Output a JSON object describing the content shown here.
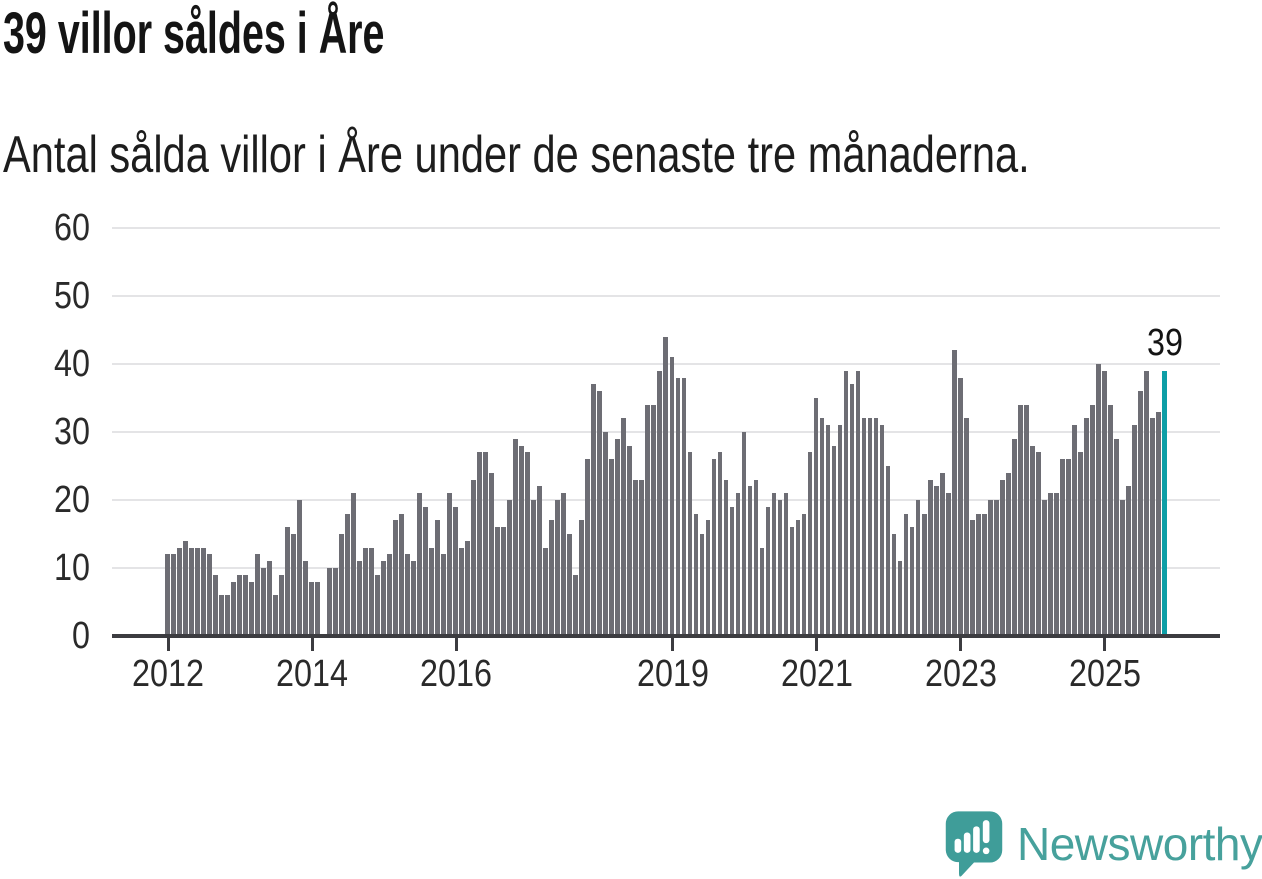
{
  "header": {
    "title": "39 villor såldes i Åre",
    "subtitle": "Antal sålda villor i Åre under de senaste tre månaderna."
  },
  "annotation": {
    "last_value_label": "39"
  },
  "footer": {
    "brand": "Newsworthy"
  },
  "colors": {
    "bar": "#6d6d74",
    "highlight": "#0d9ea6",
    "grid": "#e4e4e6",
    "axis": "#3c3c40",
    "text": "#2a2a2a",
    "title_text": "#141414",
    "brand_teal": "#47a19c",
    "logo_bubble": "#3f9d99"
  },
  "chart_data": {
    "type": "bar",
    "title": "39 villor såldes i Åre",
    "subtitle": "Antal sålda villor i Åre under de senaste tre månaderna.",
    "description": "Monthly rolling three-month count of villa sales in Åre, first bar Jan 2012, last (highlighted) bar value 39",
    "y_ticks": [
      0,
      10,
      20,
      30,
      40,
      50,
      60
    ],
    "ylim": [
      0,
      60
    ],
    "grid": "horizontal",
    "x_tick_labels": [
      "2012",
      "2014",
      "2016",
      "2019",
      "2021",
      "2023",
      "2025"
    ],
    "x_tick_indices": [
      0,
      24,
      48,
      84,
      108,
      132,
      156
    ],
    "values": [
      12,
      12,
      13,
      14,
      13,
      13,
      13,
      12,
      9,
      6,
      6,
      8,
      9,
      9,
      8,
      12,
      10,
      11,
      6,
      9,
      16,
      15,
      20,
      11,
      8,
      8,
      0,
      10,
      10,
      15,
      18,
      21,
      11,
      13,
      13,
      9,
      11,
      12,
      17,
      18,
      12,
      11,
      21,
      19,
      13,
      17,
      12,
      21,
      19,
      13,
      14,
      23,
      27,
      27,
      24,
      16,
      16,
      20,
      29,
      28,
      27,
      20,
      22,
      13,
      17,
      20,
      21,
      15,
      9,
      17,
      26,
      37,
      36,
      30,
      26,
      29,
      32,
      28,
      23,
      23,
      34,
      34,
      39,
      44,
      41,
      38,
      38,
      27,
      18,
      15,
      17,
      26,
      27,
      23,
      19,
      21,
      30,
      22,
      23,
      13,
      19,
      21,
      20,
      21,
      16,
      17,
      18,
      27,
      35,
      32,
      31,
      28,
      31,
      39,
      37,
      39,
      32,
      32,
      32,
      31,
      25,
      15,
      11,
      18,
      16,
      20,
      18,
      23,
      22,
      24,
      21,
      42,
      38,
      32,
      17,
      18,
      18,
      20,
      20,
      23,
      24,
      29,
      34,
      34,
      28,
      27,
      20,
      21,
      21,
      26,
      26,
      31,
      27,
      32,
      34,
      40,
      39,
      34,
      29,
      20,
      22,
      31,
      36,
      39,
      32,
      33,
      39
    ],
    "highlight_last": true,
    "annotation_value": 39,
    "legend": "none"
  }
}
